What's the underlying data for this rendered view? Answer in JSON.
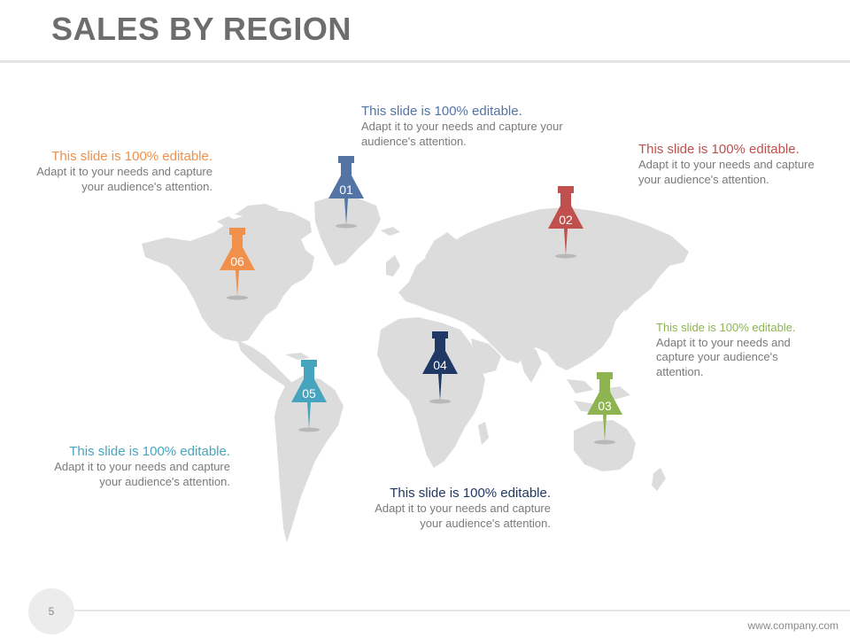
{
  "slide": {
    "title": "SALES BY REGION",
    "page_number": "5",
    "website": "www.company.com"
  },
  "colors": {
    "pin_01": "#5474a6",
    "pin_02": "#c0504d",
    "pin_03": "#8eb451",
    "pin_04": "#1f3864",
    "pin_05": "#47a4be",
    "pin_06": "#f0904a",
    "map_land": "#dcdcdc",
    "body_text": "#7a7a7a"
  },
  "pins": [
    {
      "number": "01",
      "color": "#5474a6"
    },
    {
      "number": "02",
      "color": "#c0504d"
    },
    {
      "number": "03",
      "color": "#8eb451"
    },
    {
      "number": "04",
      "color": "#1f3864"
    },
    {
      "number": "05",
      "color": "#47a4be"
    },
    {
      "number": "06",
      "color": "#f0904a"
    }
  ],
  "callouts": [
    {
      "pin": "01",
      "heading": "This slide is 100% editable.",
      "body": "Adapt it to your needs and capture your audience's attention."
    },
    {
      "pin": "02",
      "heading": "This slide is 100% editable.",
      "body": "Adapt it to your needs and capture your audience's attention."
    },
    {
      "pin": "03",
      "heading": "This slide is 100% editable.",
      "body": "Adapt it to your needs and capture your audience's attention."
    },
    {
      "pin": "04",
      "heading": "This slide is 100% editable.",
      "body": "Adapt it to your needs and capture your audience's attention."
    },
    {
      "pin": "05",
      "heading": "This slide is 100% editable.",
      "body": "Adapt it to your needs and capture your audience's attention."
    },
    {
      "pin": "06",
      "heading": "This slide is 100% editable.",
      "body": "Adapt it to your needs and capture your audience's attention."
    }
  ]
}
